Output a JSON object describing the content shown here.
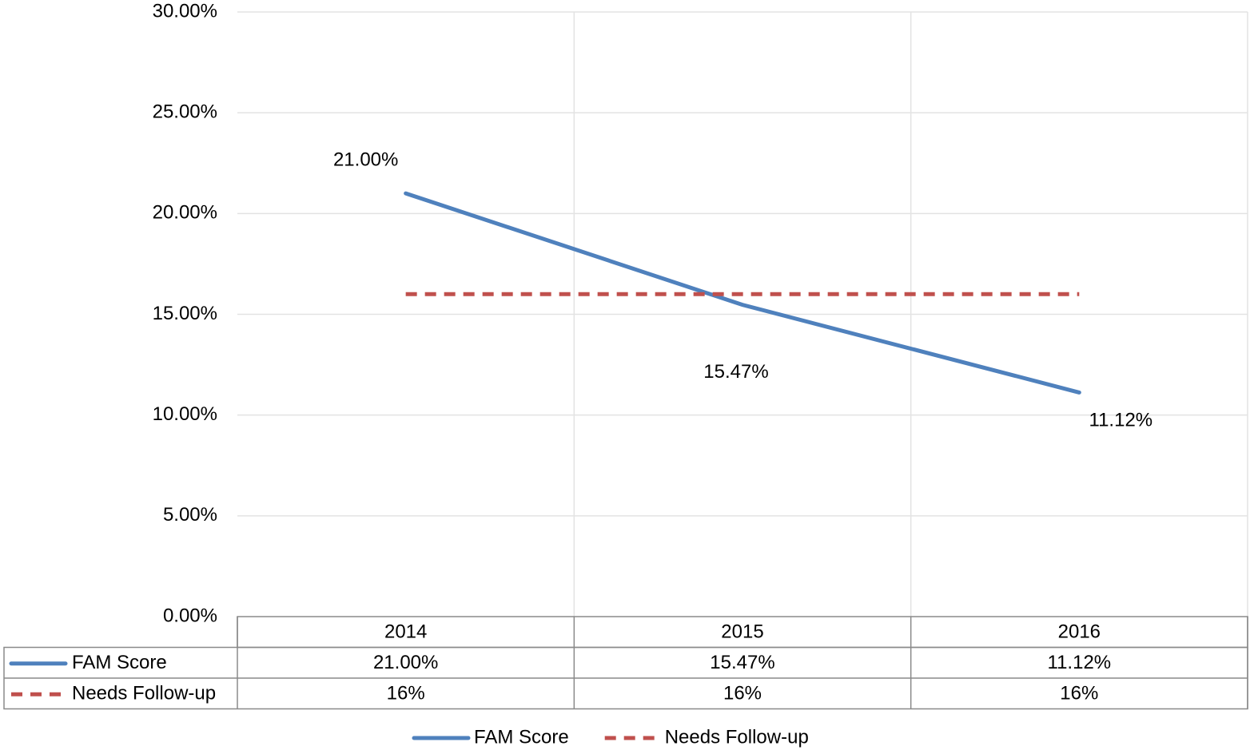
{
  "chart_data": {
    "type": "line",
    "categories": [
      "2014",
      "2015",
      "2016"
    ],
    "series": [
      {
        "name": "FAM Score",
        "color": "#4f81bd",
        "dash": false,
        "values": [
          21.0,
          15.47,
          11.12
        ],
        "value_labels": [
          "21.00%",
          "15.47%",
          "11.12%"
        ],
        "show_labels": true
      },
      {
        "name": "Needs Follow-up",
        "color": "#c0504d",
        "dash": true,
        "values": [
          16,
          16,
          16
        ],
        "value_labels": [
          "16%",
          "16%",
          "16%"
        ],
        "show_labels": false
      }
    ],
    "ylim": [
      0,
      30
    ],
    "yticks": [
      {
        "value": 0,
        "label": "0.00%"
      },
      {
        "value": 5,
        "label": "5.00%"
      },
      {
        "value": 10,
        "label": "10.00%"
      },
      {
        "value": 15,
        "label": "15.00%"
      },
      {
        "value": 20,
        "label": "20.00%"
      },
      {
        "value": 25,
        "label": "25.00%"
      },
      {
        "value": 30,
        "label": "30.00%"
      }
    ],
    "grid": true,
    "data_table": true,
    "legend": "bottom"
  }
}
